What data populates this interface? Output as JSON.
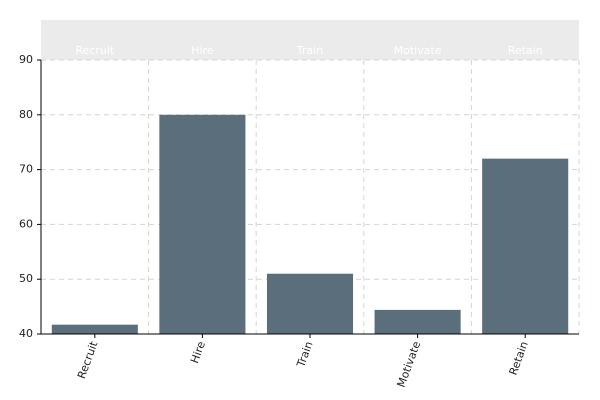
{
  "chart_data": {
    "type": "bar",
    "categories": [
      "Recruit",
      "Hire",
      "Train",
      "Motivate",
      "Retain"
    ],
    "values": [
      41.7,
      80,
      51,
      44.4,
      72
    ],
    "color": "#5b6e7c",
    "ylim": [
      40,
      90
    ],
    "yticks": [
      40,
      50,
      60,
      70,
      80,
      90
    ],
    "grid": true
  }
}
